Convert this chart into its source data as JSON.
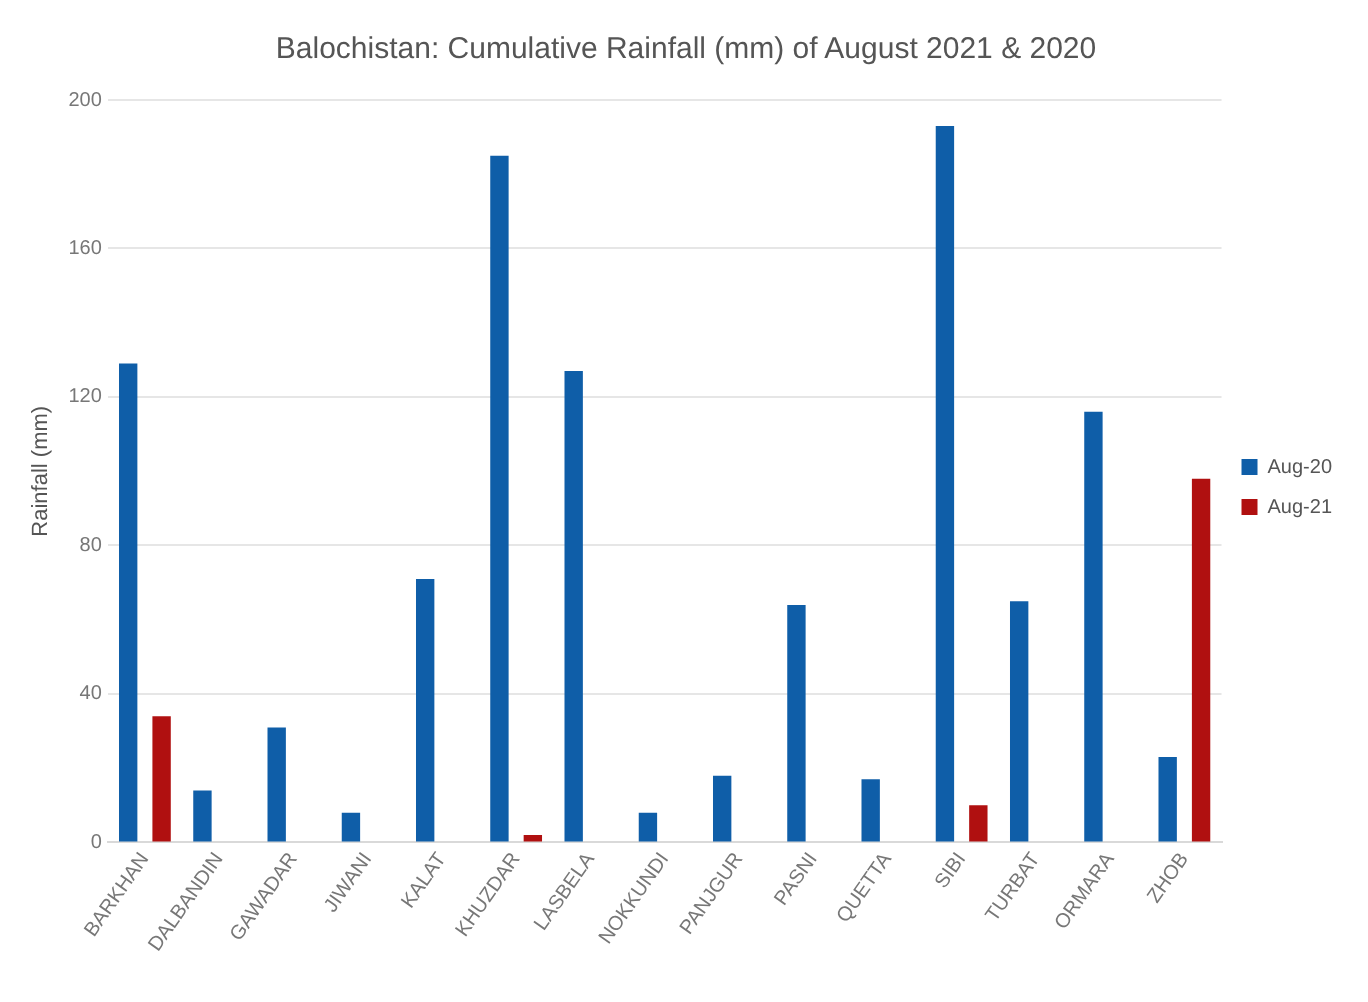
{
  "chart_data": {
    "type": "bar",
    "title": "Balochistan: Cumulative Rainfall (mm) of August 2021 & 2020",
    "ylabel": "Rainfall (mm)",
    "categories": [
      "BARKHAN",
      "DALBANDIN",
      "GAWADAR",
      "JIWANI",
      "KALAT",
      "KHUZDAR",
      "LASBELA",
      "NOKKUNDI",
      "PANJGUR",
      "PASNI",
      "QUETTA",
      "SIBI",
      "TURBAT",
      "ORMARA",
      "ZHOB"
    ],
    "series": [
      {
        "name": "Aug-20",
        "color": "#0f5ea8",
        "values": [
          129,
          14,
          31,
          8,
          71,
          185,
          127,
          8,
          18,
          64,
          17,
          193,
          65,
          116,
          23
        ]
      },
      {
        "name": "Aug-21",
        "color": "#b01010",
        "values": [
          34,
          null,
          null,
          null,
          null,
          2,
          null,
          null,
          null,
          null,
          null,
          10,
          null,
          null,
          98
        ]
      }
    ],
    "ylim": [
      0,
      200
    ],
    "yticks": [
      0,
      40,
      80,
      120,
      160,
      200
    ],
    "grid": "y",
    "legend": "right"
  }
}
